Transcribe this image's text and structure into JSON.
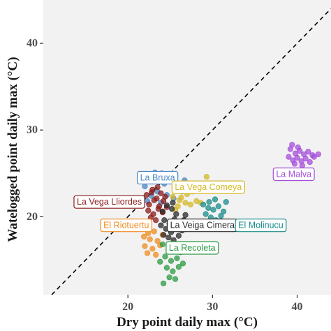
{
  "chart_data": {
    "type": "scatter",
    "title": "",
    "xlabel": "Dry point daily max (°C)",
    "ylabel": "Watelogged point daily max (°C)",
    "xlim": [
      10,
      44
    ],
    "ylim": [
      11,
      45
    ],
    "xticks": [
      20,
      30,
      40
    ],
    "yticks": [
      20,
      30,
      40
    ],
    "grid": false,
    "legend": "none",
    "reference_line": {
      "style": "dashed",
      "color": "#000000",
      "equation": "y = x"
    },
    "series": [
      {
        "name": "La Bruxa",
        "color": "#4a86c6",
        "points": [
          [
            22.0,
            23.5
          ],
          [
            22.5,
            24.7
          ],
          [
            23.2,
            25.1
          ],
          [
            23.8,
            24.6
          ],
          [
            24.3,
            23.8
          ],
          [
            25.1,
            24.3
          ],
          [
            25.8,
            23.1
          ],
          [
            26.4,
            22.9
          ],
          [
            22.8,
            22.4
          ],
          [
            23.5,
            22.9
          ],
          [
            24.6,
            22.5
          ],
          [
            25.4,
            22.1
          ],
          [
            26.7,
            24.2
          ],
          [
            24.0,
            25.0
          ],
          [
            22.3,
            21.8
          ],
          [
            23.9,
            21.6
          ]
        ]
      },
      {
        "name": "La Vega Comeya",
        "color": "#d4b829",
        "points": [
          [
            25.3,
            22.3
          ],
          [
            26.1,
            21.9
          ],
          [
            26.8,
            21.6
          ],
          [
            27.4,
            21.4
          ],
          [
            27.0,
            22.6
          ],
          [
            28.1,
            21.8
          ],
          [
            29.3,
            24.6
          ],
          [
            25.9,
            21.2
          ],
          [
            27.6,
            22.9
          ],
          [
            26.3,
            22.2
          ],
          [
            28.6,
            21.6
          ],
          [
            25.6,
            20.8
          ]
        ]
      },
      {
        "name": "La Vega Lliordes",
        "color": "#8b1a1a",
        "points": [
          [
            22.2,
            22.5
          ],
          [
            22.8,
            22.8
          ],
          [
            23.4,
            22.1
          ],
          [
            23.9,
            22.7
          ],
          [
            22.5,
            21.4
          ],
          [
            23.1,
            21.9
          ],
          [
            23.7,
            21.2
          ],
          [
            24.2,
            21.8
          ],
          [
            22.4,
            20.7
          ],
          [
            23.0,
            20.3
          ],
          [
            23.6,
            20.9
          ],
          [
            24.1,
            20.5
          ],
          [
            22.7,
            19.9
          ],
          [
            23.3,
            19.6
          ],
          [
            24.4,
            22.3
          ],
          [
            22.9,
            23.1
          ],
          [
            23.5,
            23.4
          ],
          [
            24.6,
            21.1
          ]
        ]
      },
      {
        "name": "El Riotuertu",
        "color": "#f08c1e",
        "points": [
          [
            21.8,
            18.6
          ],
          [
            22.4,
            18.1
          ],
          [
            23.1,
            18.3
          ],
          [
            22.6,
            17.4
          ],
          [
            23.5,
            17.2
          ],
          [
            22.0,
            16.6
          ],
          [
            22.9,
            16.3
          ],
          [
            23.8,
            16.7
          ],
          [
            22.3,
            15.8
          ],
          [
            23.3,
            15.6
          ],
          [
            24.1,
            17.9
          ],
          [
            21.9,
            17.7
          ]
        ]
      },
      {
        "name": "La Veiga Cimera",
        "color": "#2a2a2a",
        "points": [
          [
            24.1,
            20.6
          ],
          [
            24.6,
            21.3
          ],
          [
            25.2,
            20.9
          ],
          [
            25.7,
            20.3
          ],
          [
            24.3,
            19.6
          ],
          [
            24.9,
            19.2
          ],
          [
            25.5,
            19.7
          ],
          [
            26.1,
            19.1
          ],
          [
            24.5,
            18.6
          ],
          [
            25.1,
            18.2
          ],
          [
            25.8,
            18.7
          ],
          [
            26.4,
            18.4
          ],
          [
            24.8,
            17.6
          ],
          [
            25.4,
            17.3
          ],
          [
            26.0,
            17.8
          ],
          [
            26.8,
            20.2
          ],
          [
            23.9,
            19.0
          ],
          [
            25.3,
            21.6
          ],
          [
            26.6,
            19.6
          ],
          [
            24.2,
            17.9
          ]
        ]
      },
      {
        "name": "El Molinucu",
        "color": "#1a8c8c",
        "points": [
          [
            28.9,
            21.4
          ],
          [
            29.5,
            21.0
          ],
          [
            30.1,
            20.8
          ],
          [
            30.7,
            21.2
          ],
          [
            31.3,
            20.6
          ],
          [
            29.2,
            20.3
          ],
          [
            29.8,
            19.9
          ],
          [
            30.4,
            19.6
          ],
          [
            31.0,
            20.1
          ],
          [
            29.6,
            21.7
          ],
          [
            30.3,
            22.0
          ],
          [
            31.6,
            21.7
          ]
        ]
      },
      {
        "name": "La Recoleta",
        "color": "#2e9b44",
        "points": [
          [
            24.1,
            16.8
          ],
          [
            24.8,
            16.2
          ],
          [
            25.5,
            16.6
          ],
          [
            26.2,
            15.9
          ],
          [
            24.4,
            15.4
          ],
          [
            25.1,
            14.9
          ],
          [
            25.8,
            15.2
          ],
          [
            24.6,
            14.1
          ],
          [
            25.3,
            13.7
          ],
          [
            26.0,
            14.2
          ],
          [
            24.9,
            13.0
          ],
          [
            26.5,
            14.6
          ],
          [
            24.2,
            12.3
          ],
          [
            23.8,
            14.8
          ],
          [
            25.6,
            12.8
          ]
        ]
      },
      {
        "name": "La Malva",
        "color": "#a64ddb",
        "points": [
          [
            39.0,
            26.9
          ],
          [
            39.5,
            26.5
          ],
          [
            40.0,
            26.8
          ],
          [
            40.5,
            26.4
          ],
          [
            41.0,
            26.7
          ],
          [
            41.5,
            26.3
          ],
          [
            42.0,
            26.9
          ],
          [
            42.5,
            27.2
          ],
          [
            39.2,
            27.8
          ],
          [
            39.8,
            27.3
          ],
          [
            40.3,
            27.6
          ],
          [
            40.8,
            27.2
          ],
          [
            41.3,
            27.5
          ],
          [
            41.8,
            27.1
          ],
          [
            39.4,
            28.3
          ],
          [
            40.1,
            28.0
          ],
          [
            39.7,
            26.1
          ],
          [
            40.6,
            25.9
          ]
        ]
      }
    ],
    "annotations": [
      {
        "text": "La Bruxa",
        "series": "La Bruxa",
        "anchor": [
          23.5,
          24.5
        ]
      },
      {
        "text": "La Vega Comeya",
        "series": "La Vega Comeya",
        "anchor": [
          29.5,
          23.4
        ]
      },
      {
        "text": "La Vega Lliordes",
        "series": "La Vega Lliordes",
        "anchor": [
          17.8,
          21.7
        ]
      },
      {
        "text": "El Riotuertu",
        "series": "El Riotuertu",
        "anchor": [
          19.8,
          19.0
        ]
      },
      {
        "text": "La Veiga Cimera",
        "series": "La Veiga Cimera",
        "anchor": [
          28.8,
          19.0
        ]
      },
      {
        "text": "El Molinucu",
        "series": "El Molinucu",
        "anchor": [
          35.7,
          19.0
        ]
      },
      {
        "text": "La Recoleta",
        "series": "La Recoleta",
        "anchor": [
          27.6,
          16.4
        ]
      },
      {
        "text": "La Malva",
        "series": "La Malva",
        "anchor": [
          39.6,
          24.9
        ]
      }
    ]
  }
}
